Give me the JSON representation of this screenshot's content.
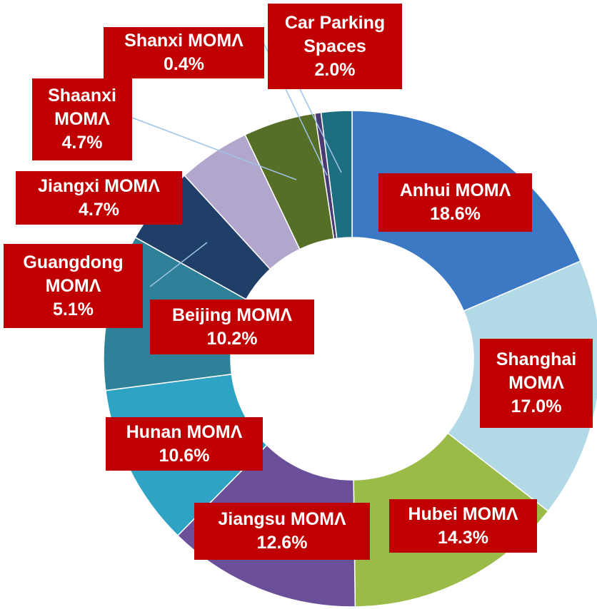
{
  "chart_data": {
    "type": "donut",
    "categories": [
      "Anhui MOMΛ",
      "Shanghai MOMΛ",
      "Hubei MOMΛ",
      "Jiangsu MOMΛ",
      "Hunan MOMΛ",
      "Beijing MOMΛ",
      "Guangdong MOMΛ",
      "Jiangxi MOMΛ",
      "Shaanxi MOMΛ",
      "Shanxi MOMΛ",
      "Car Parking Spaces"
    ],
    "values": [
      18.6,
      17.0,
      14.3,
      12.6,
      10.6,
      10.2,
      5.1,
      4.7,
      4.7,
      0.4,
      2.0
    ],
    "value_labels": [
      "18.6%",
      "17.0%",
      "14.3%",
      "12.6%",
      "10.6%",
      "10.2%",
      "5.1%",
      "4.7%",
      "4.7%",
      "0.4%",
      "2.0%"
    ],
    "colors": [
      "#3b79c4",
      "#b1d9e6",
      "#9bbb48",
      "#6b4f99",
      "#2fa3c3",
      "#2f8199",
      "#1f3e68",
      "#b3a6cc",
      "#566f27",
      "#4a3a72",
      "#1e6e82"
    ]
  }
}
